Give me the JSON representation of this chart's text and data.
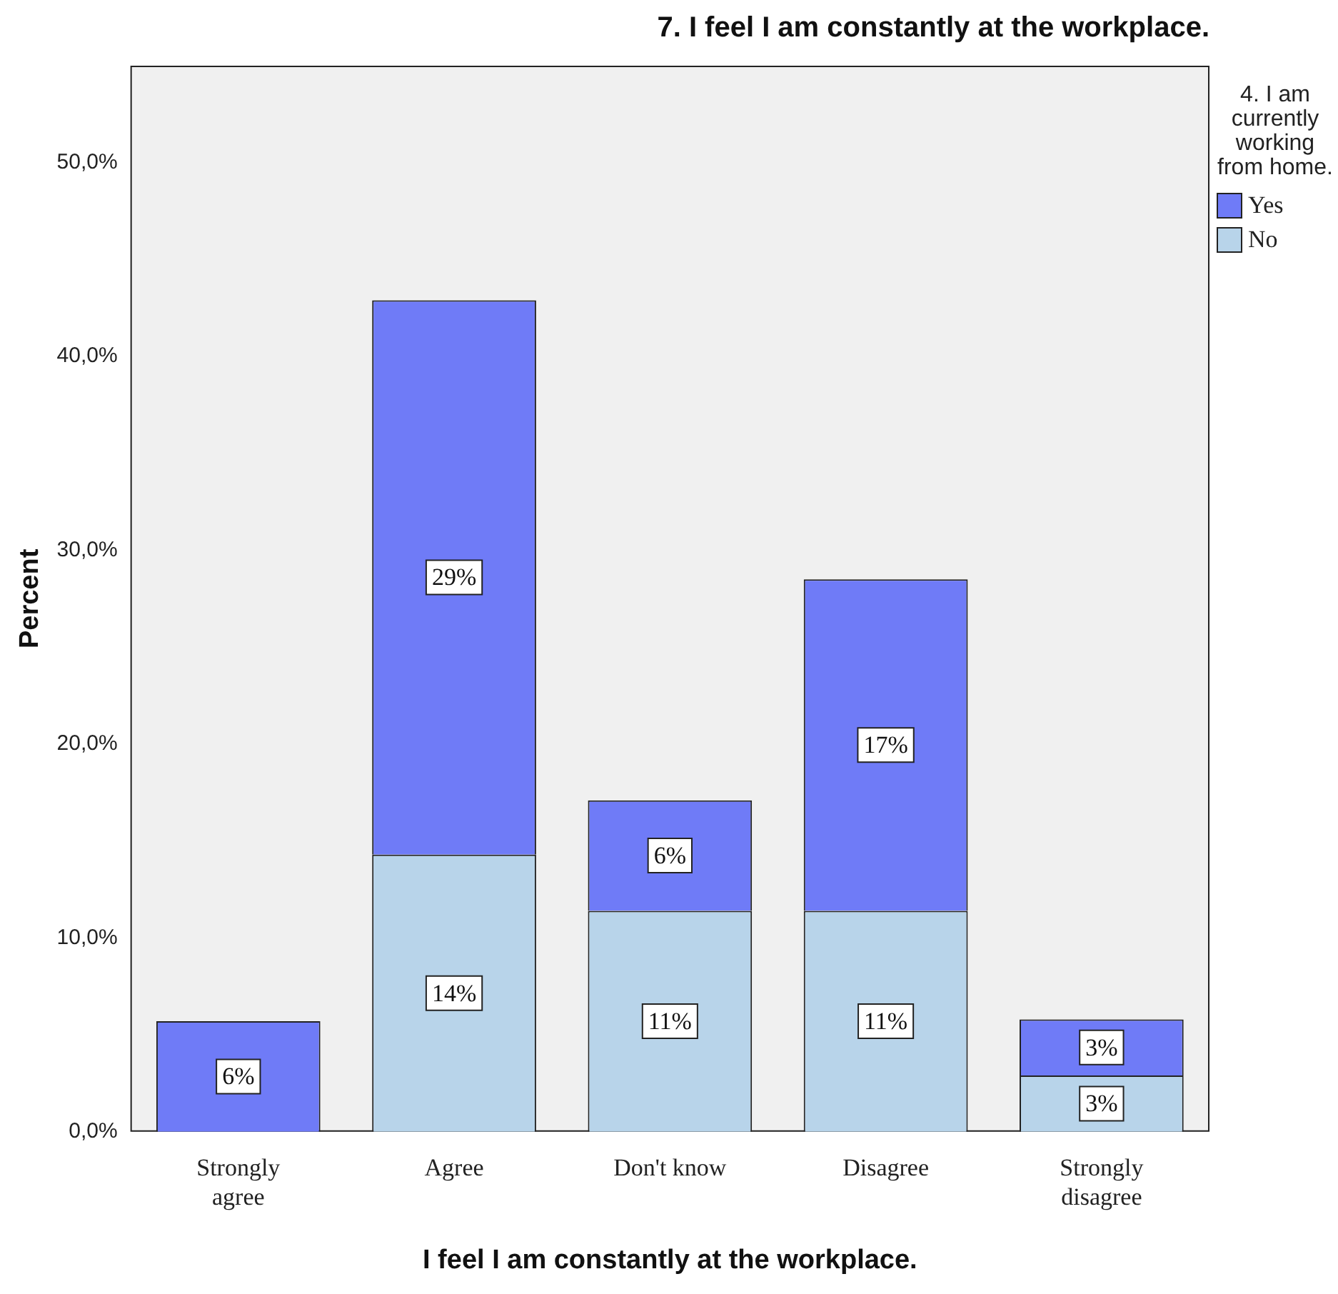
{
  "chart_data": {
    "type": "bar",
    "stacked": true,
    "title": "7. I feel I am constantly at the workplace.",
    "xlabel": "I feel I am constantly at the workplace.",
    "ylabel": "Percent",
    "legend_title": "4. I am currently working from home.",
    "legend": "right",
    "categories": [
      "Strongly agree",
      "Agree",
      "Don't know",
      "Disagree",
      "Strongly disagree"
    ],
    "series": [
      {
        "name": "No",
        "color": "#b8d4ea",
        "values": [
          null,
          14.3,
          11.4,
          11.4,
          2.9
        ],
        "value_labels": [
          null,
          "14%",
          "11%",
          "11%",
          "3%"
        ]
      },
      {
        "name": "Yes",
        "color": "#6f7bf7",
        "values": [
          5.7,
          28.6,
          5.7,
          17.1,
          2.9
        ],
        "value_labels": [
          "6%",
          "29%",
          "6%",
          "17%",
          "3%"
        ]
      }
    ],
    "ylim": [
      0,
      55
    ],
    "yticks": [
      {
        "value": 0,
        "label": "0,0%"
      },
      {
        "value": 10,
        "label": "10,0%"
      },
      {
        "value": 20,
        "label": "20,0%"
      },
      {
        "value": 30,
        "label": "30,0%"
      },
      {
        "value": 40,
        "label": "40,0%"
      },
      {
        "value": 50,
        "label": "50,0%"
      }
    ]
  }
}
